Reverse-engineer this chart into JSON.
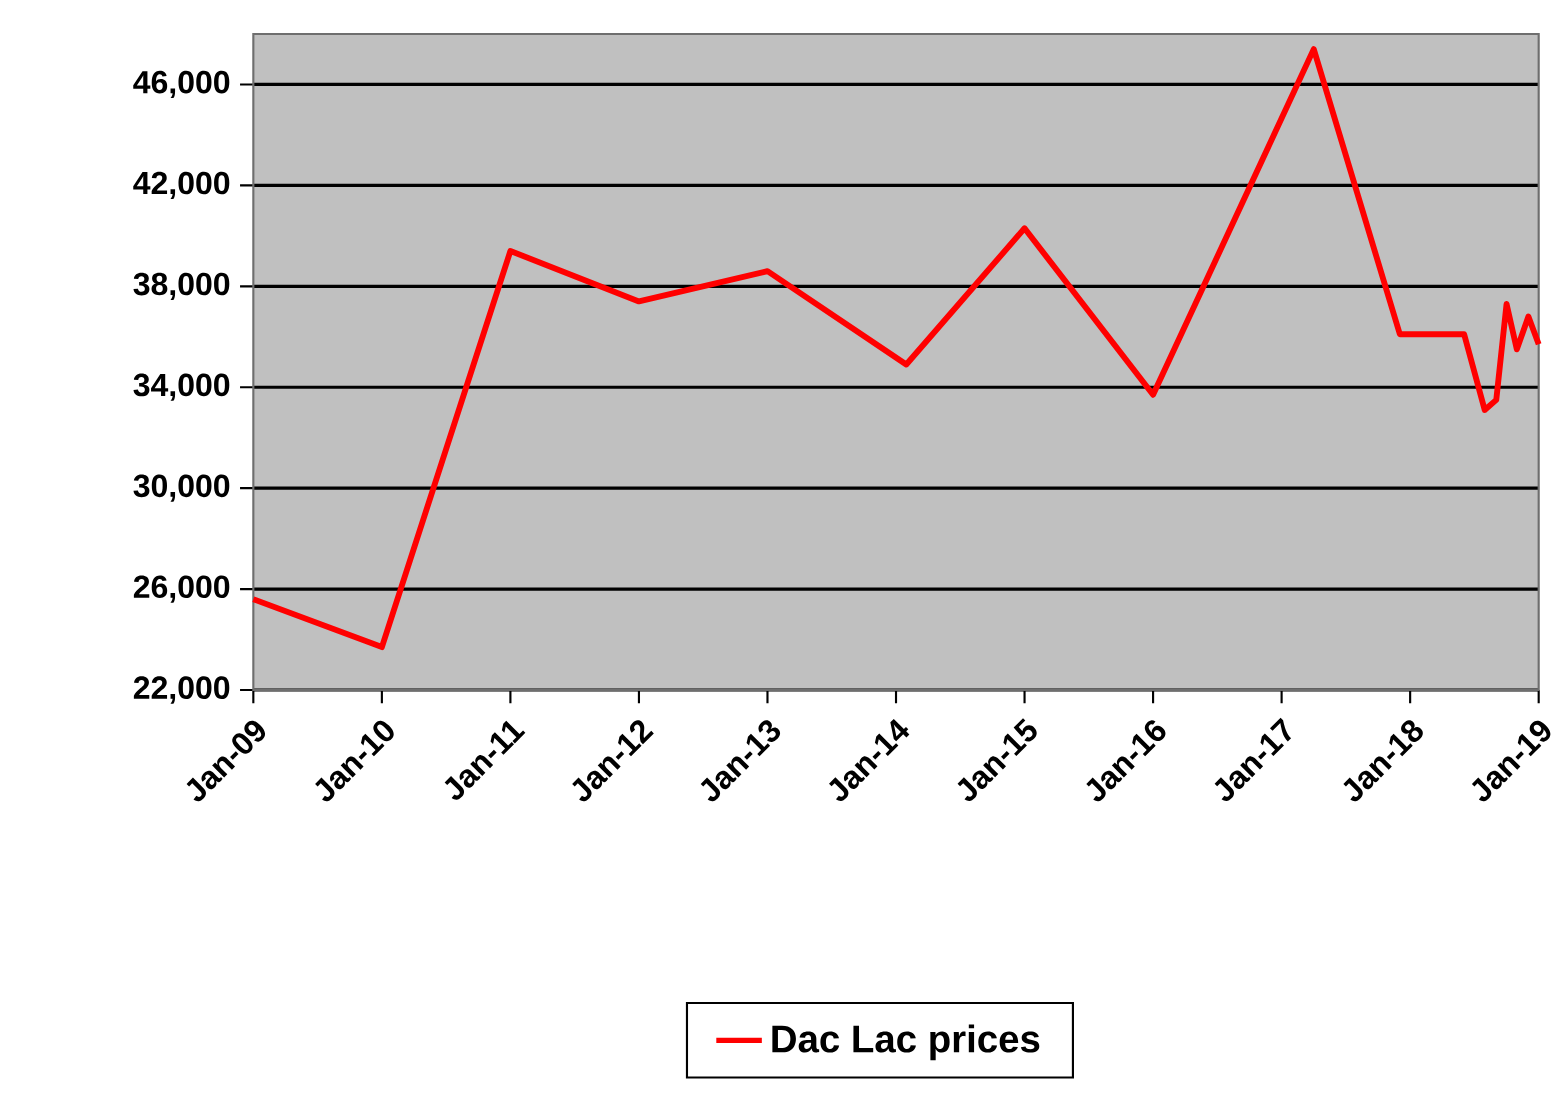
{
  "chart_data": {
    "type": "line",
    "x": [
      "2009-01",
      "2010-01",
      "2011-01",
      "2012-01",
      "2013-01",
      "2014-02",
      "2015-01",
      "2016-01",
      "2017-04",
      "2017-12",
      "2018-06",
      "2018-08",
      "2018-09",
      "2018-10",
      "2018-11",
      "2018-12",
      "2019-01"
    ],
    "series": [
      {
        "name": "Dac Lac prices",
        "color": "#ff0000",
        "values": [
          25600,
          23700,
          39400,
          37400,
          38600,
          34900,
          40300,
          33700,
          47400,
          36100,
          36100,
          33100,
          33500,
          37300,
          35500,
          36800,
          35700
        ]
      }
    ],
    "xlim": [
      "2009-01",
      "2019-01"
    ],
    "xticks": [
      {
        "value": "2009-01",
        "label": "Jan-09"
      },
      {
        "value": "2010-01",
        "label": "Jan-10"
      },
      {
        "value": "2011-01",
        "label": "Jan-11"
      },
      {
        "value": "2012-01",
        "label": "Jan-12"
      },
      {
        "value": "2013-01",
        "label": "Jan-13"
      },
      {
        "value": "2014-01",
        "label": "Jan-14"
      },
      {
        "value": "2015-01",
        "label": "Jan-15"
      },
      {
        "value": "2016-01",
        "label": "Jan-16"
      },
      {
        "value": "2017-01",
        "label": "Jan-17"
      },
      {
        "value": "2018-01",
        "label": "Jan-18"
      },
      {
        "value": "2019-01",
        "label": "Jan-19"
      }
    ],
    "ylim": [
      22000,
      48000
    ],
    "yticks": [
      {
        "value": 22000,
        "label": "22,000"
      },
      {
        "value": 26000,
        "label": "26,000"
      },
      {
        "value": 30000,
        "label": "30,000"
      },
      {
        "value": 34000,
        "label": "34,000"
      },
      {
        "value": 38000,
        "label": "38,000"
      },
      {
        "value": 42000,
        "label": "42,000"
      },
      {
        "value": 46000,
        "label": "46,000"
      }
    ],
    "grid": "y",
    "legend": "bottom",
    "marker": "none",
    "line_style": "solid"
  }
}
